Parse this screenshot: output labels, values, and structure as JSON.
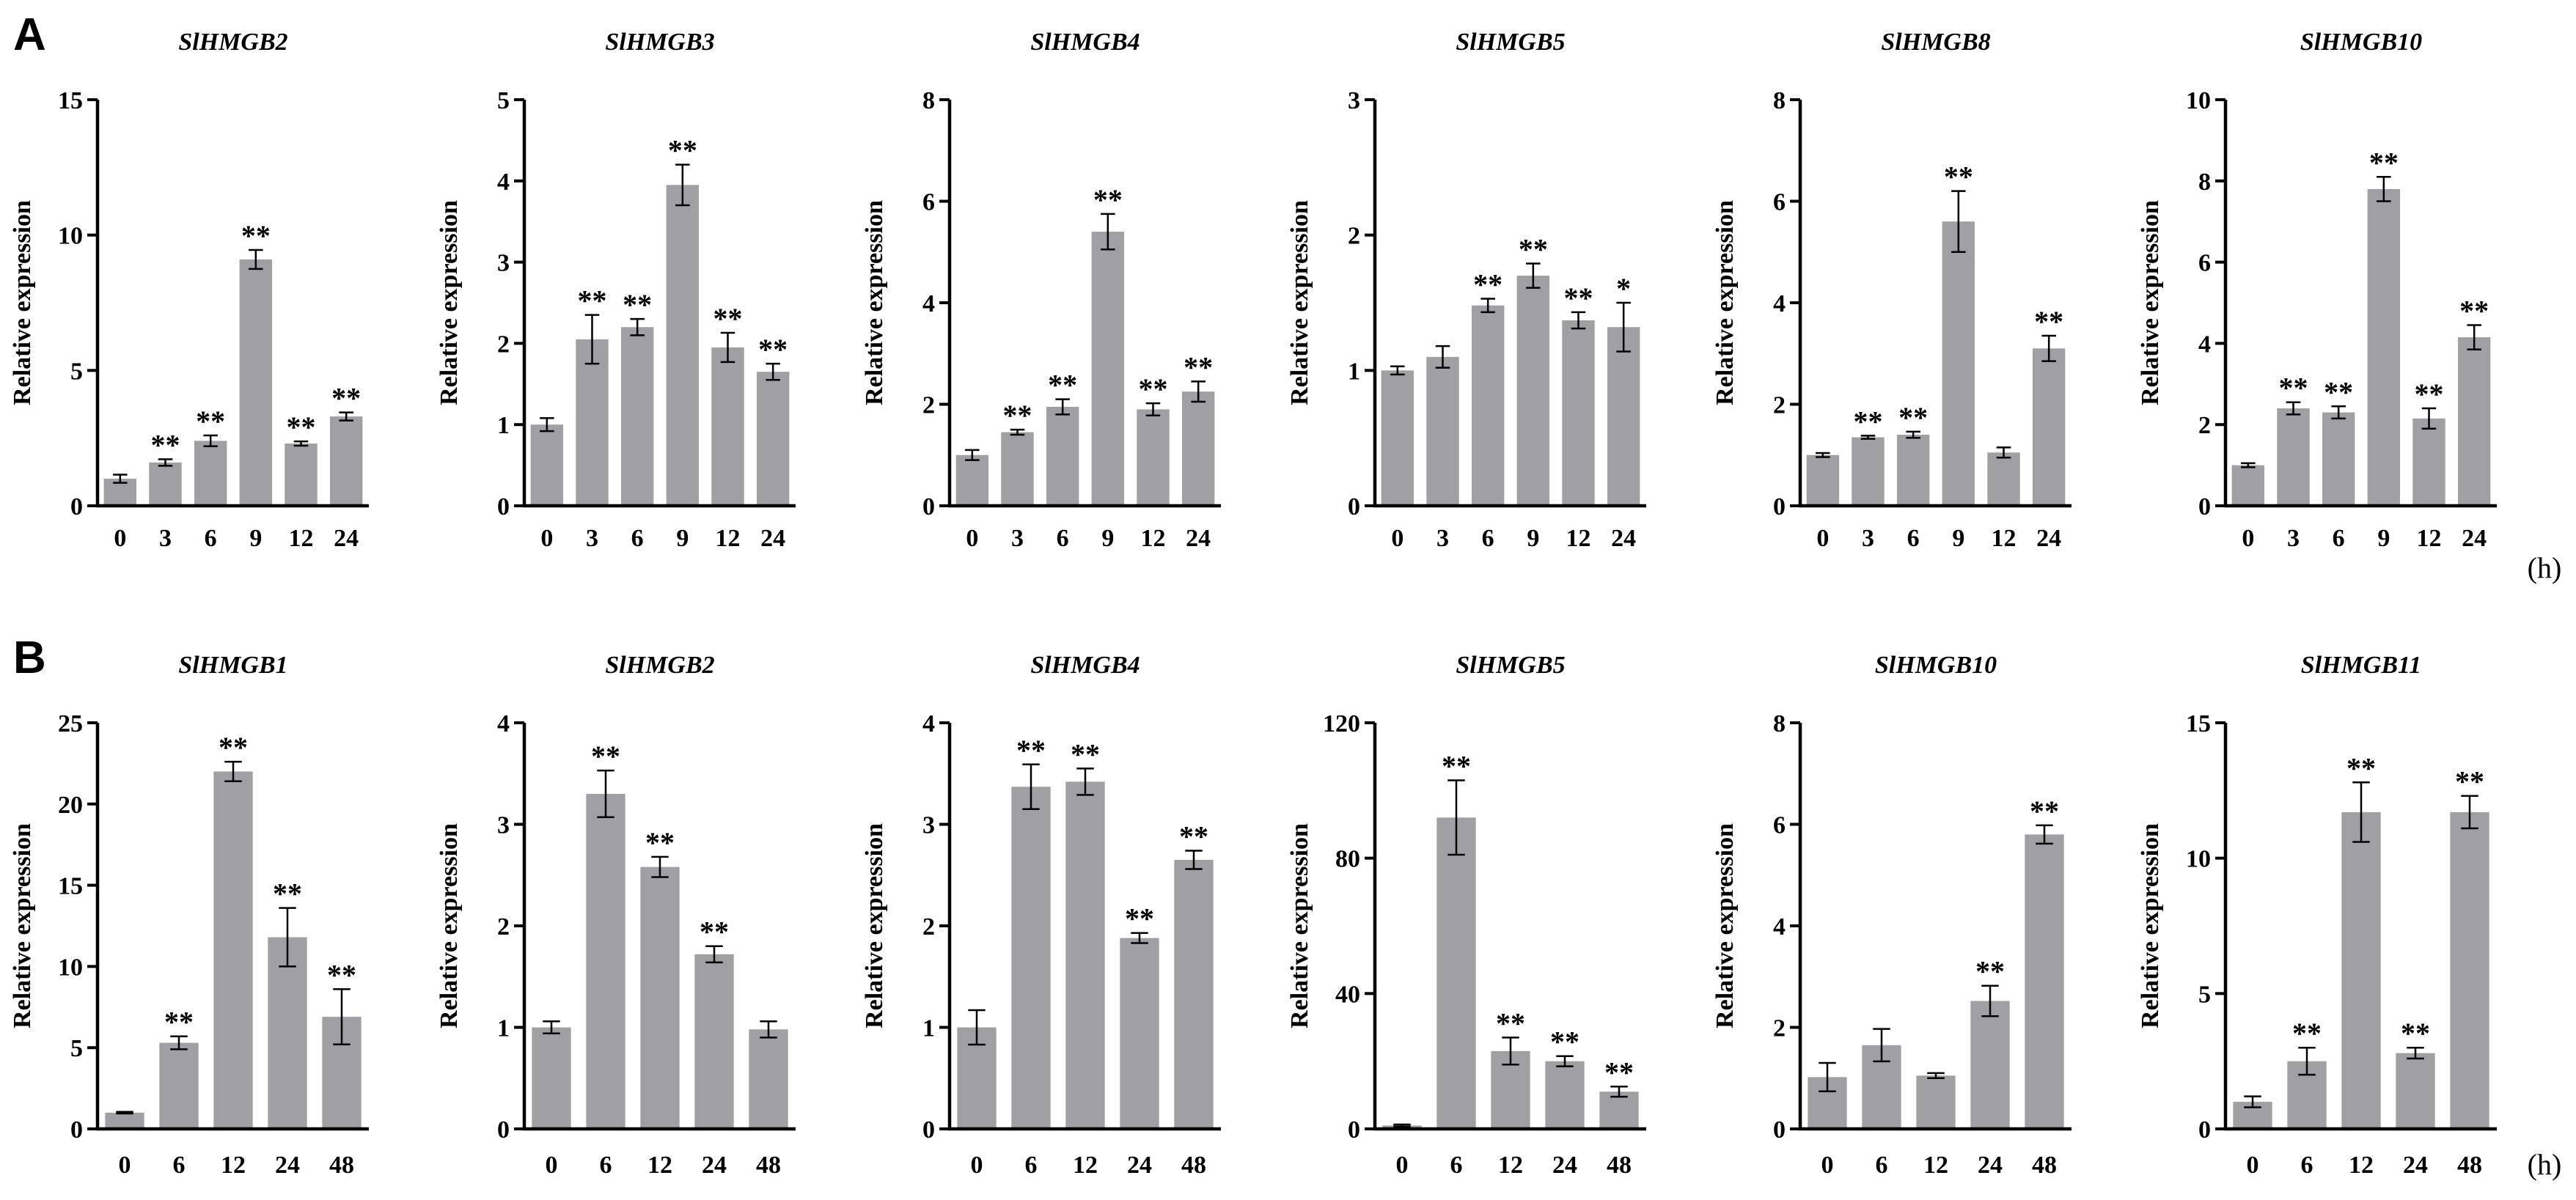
{
  "figure": {
    "panel_labels": [
      "A",
      "B"
    ],
    "unit_label": "(h)"
  },
  "chart_data": [
    {
      "type": "bar",
      "row": 0,
      "title": "SlHMGB2",
      "ylabel": "Relative expression",
      "categories": [
        "0",
        "3",
        "6",
        "9",
        "12",
        "24"
      ],
      "values": [
        1.0,
        1.6,
        2.4,
        9.1,
        2.3,
        3.3
      ],
      "errors": [
        0.15,
        0.12,
        0.2,
        0.35,
        0.08,
        0.15
      ],
      "significance": [
        "",
        "**",
        "**",
        "**",
        "**",
        "**"
      ],
      "ylim": [
        0,
        15
      ],
      "yticks": [
        0,
        5,
        10,
        15
      ],
      "bar_color": "#a0a0a4"
    },
    {
      "type": "bar",
      "row": 0,
      "title": "SlHMGB3",
      "ylabel": "Relative expression",
      "categories": [
        "0",
        "3",
        "6",
        "9",
        "12",
        "24"
      ],
      "values": [
        1.0,
        2.05,
        2.2,
        3.95,
        1.95,
        1.65
      ],
      "errors": [
        0.08,
        0.3,
        0.1,
        0.25,
        0.18,
        0.1
      ],
      "significance": [
        "",
        "**",
        "**",
        "**",
        "**",
        "**"
      ],
      "ylim": [
        0,
        5
      ],
      "yticks": [
        0,
        1,
        2,
        3,
        4,
        5
      ],
      "bar_color": "#a0a0a4"
    },
    {
      "type": "bar",
      "row": 0,
      "title": "SlHMGB4",
      "ylabel": "Relative expression",
      "categories": [
        "0",
        "3",
        "6",
        "9",
        "12",
        "24"
      ],
      "values": [
        1.0,
        1.45,
        1.95,
        5.4,
        1.9,
        2.25
      ],
      "errors": [
        0.1,
        0.05,
        0.15,
        0.35,
        0.12,
        0.2
      ],
      "significance": [
        "",
        "**",
        "**",
        "**",
        "**",
        "**"
      ],
      "ylim": [
        0,
        8
      ],
      "yticks": [
        0,
        2,
        4,
        6,
        8
      ],
      "bar_color": "#a0a0a4"
    },
    {
      "type": "bar",
      "row": 0,
      "title": "SlHMGB5",
      "ylabel": "Relative expression",
      "categories": [
        "0",
        "3",
        "6",
        "9",
        "12",
        "24"
      ],
      "values": [
        1.0,
        1.1,
        1.48,
        1.7,
        1.37,
        1.32
      ],
      "errors": [
        0.03,
        0.08,
        0.05,
        0.09,
        0.06,
        0.18
      ],
      "significance": [
        "",
        "",
        "**",
        "**",
        "**",
        "*"
      ],
      "ylim": [
        0,
        3
      ],
      "yticks": [
        0,
        1,
        2,
        3
      ],
      "bar_color": "#a0a0a4"
    },
    {
      "type": "bar",
      "row": 0,
      "title": "SlHMGB8",
      "ylabel": "Relative expression",
      "categories": [
        "0",
        "3",
        "6",
        "9",
        "12",
        "24"
      ],
      "values": [
        1.0,
        1.35,
        1.4,
        5.6,
        1.05,
        3.1
      ],
      "errors": [
        0.04,
        0.03,
        0.06,
        0.6,
        0.1,
        0.25
      ],
      "significance": [
        "",
        "**",
        "**",
        "**",
        "",
        "**"
      ],
      "ylim": [
        0,
        8
      ],
      "yticks": [
        0,
        2,
        4,
        6,
        8
      ],
      "bar_color": "#a0a0a4"
    },
    {
      "type": "bar",
      "row": 0,
      "title": "SlHMGB10",
      "ylabel": "Relative expression",
      "categories": [
        "0",
        "3",
        "6",
        "9",
        "12",
        "24"
      ],
      "values": [
        1.0,
        2.4,
        2.3,
        7.8,
        2.15,
        4.15
      ],
      "errors": [
        0.05,
        0.15,
        0.15,
        0.3,
        0.25,
        0.3
      ],
      "significance": [
        "",
        "**",
        "**",
        "**",
        "**",
        "**"
      ],
      "ylim": [
        0,
        10
      ],
      "yticks": [
        0,
        2,
        4,
        6,
        8,
        10
      ],
      "bar_color": "#a0a0a4"
    },
    {
      "type": "bar",
      "row": 1,
      "title": "SlHMGB1",
      "ylabel": "Relative expression",
      "categories": [
        "0",
        "6",
        "12",
        "24",
        "48"
      ],
      "values": [
        1.0,
        5.3,
        22.0,
        11.8,
        6.9
      ],
      "errors": [
        0.05,
        0.4,
        0.6,
        1.8,
        1.7
      ],
      "significance": [
        "",
        "**",
        "**",
        "**",
        "**"
      ],
      "ylim": [
        0,
        25
      ],
      "yticks": [
        0,
        5,
        10,
        15,
        20,
        25
      ],
      "bar_color": "#a0a0a4"
    },
    {
      "type": "bar",
      "row": 1,
      "title": "SlHMGB2",
      "ylabel": "Relative expression",
      "categories": [
        "0",
        "6",
        "12",
        "24",
        "48"
      ],
      "values": [
        1.0,
        3.3,
        2.58,
        1.72,
        0.98
      ],
      "errors": [
        0.06,
        0.23,
        0.1,
        0.08,
        0.08
      ],
      "significance": [
        "",
        "**",
        "**",
        "**",
        ""
      ],
      "ylim": [
        0,
        4
      ],
      "yticks": [
        0,
        1,
        2,
        3,
        4
      ],
      "bar_color": "#a0a0a4"
    },
    {
      "type": "bar",
      "row": 1,
      "title": "SlHMGB4",
      "ylabel": "Relative expression",
      "categories": [
        "0",
        "6",
        "12",
        "24",
        "48"
      ],
      "values": [
        1.0,
        3.37,
        3.42,
        1.88,
        2.65
      ],
      "errors": [
        0.17,
        0.22,
        0.13,
        0.05,
        0.09
      ],
      "significance": [
        "",
        "**",
        "**",
        "**",
        "**"
      ],
      "ylim": [
        0,
        4
      ],
      "yticks": [
        0,
        1,
        2,
        3,
        4
      ],
      "bar_color": "#a0a0a4"
    },
    {
      "type": "bar",
      "row": 1,
      "title": "SlHMGB5",
      "ylabel": "Relative expression",
      "categories": [
        "0",
        "6",
        "12",
        "24",
        "48"
      ],
      "values": [
        1.0,
        92.0,
        23.0,
        20.0,
        11.0
      ],
      "errors": [
        0.3,
        11.0,
        4.0,
        1.5,
        1.5
      ],
      "significance": [
        "",
        "**",
        "**",
        "**",
        "**"
      ],
      "ylim": [
        0,
        120
      ],
      "yticks": [
        0,
        40,
        80,
        120
      ],
      "bar_color": "#a0a0a4"
    },
    {
      "type": "bar",
      "row": 1,
      "title": "SlHMGB10",
      "ylabel": "Relative expression",
      "categories": [
        "0",
        "6",
        "12",
        "24",
        "48"
      ],
      "values": [
        1.02,
        1.65,
        1.05,
        2.52,
        5.8
      ],
      "errors": [
        0.28,
        0.32,
        0.05,
        0.3,
        0.18
      ],
      "significance": [
        "",
        "",
        "",
        "**",
        "**"
      ],
      "ylim": [
        0,
        8
      ],
      "yticks": [
        0,
        2,
        4,
        6,
        8
      ],
      "bar_color": "#a0a0a4"
    },
    {
      "type": "bar",
      "row": 1,
      "title": "SlHMGB11",
      "ylabel": "Relative expression",
      "categories": [
        "0",
        "6",
        "12",
        "24",
        "48"
      ],
      "values": [
        1.0,
        2.5,
        11.7,
        2.8,
        11.7
      ],
      "errors": [
        0.2,
        0.5,
        1.1,
        0.2,
        0.6
      ],
      "significance": [
        "",
        "**",
        "**",
        "**",
        "**"
      ],
      "ylim": [
        0,
        15
      ],
      "yticks": [
        0,
        5,
        10,
        15
      ],
      "bar_color": "#a0a0a4"
    }
  ]
}
